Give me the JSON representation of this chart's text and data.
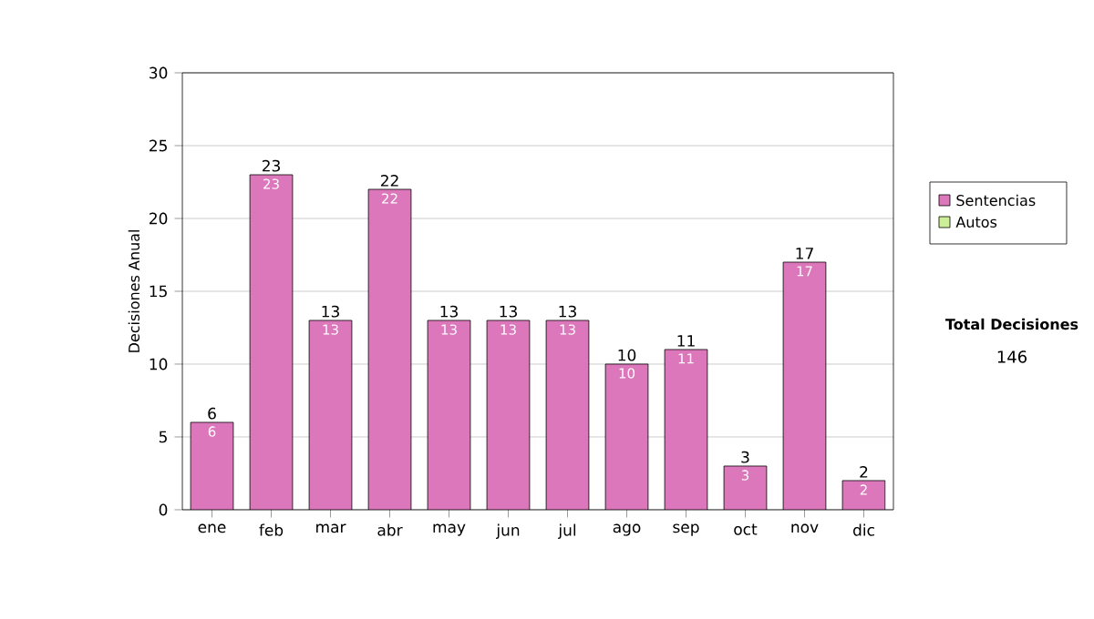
{
  "chart_data": {
    "type": "bar",
    "ylabel": "Decisiones Anual",
    "categories": [
      "ene",
      "feb",
      "mar",
      "abr",
      "may",
      "jun",
      "jul",
      "ago",
      "sep",
      "oct",
      "nov",
      "dic"
    ],
    "series": [
      {
        "name": "Sentencias",
        "color": "#dd77bb",
        "values": [
          6,
          23,
          13,
          22,
          13,
          13,
          13,
          10,
          11,
          3,
          17,
          2
        ],
        "value_labels": [
          "6",
          "23",
          "13",
          "22",
          "13",
          "13",
          "13",
          "10",
          "11",
          "3",
          "17",
          "2"
        ]
      },
      {
        "name": "Autos",
        "color": "#ccee99",
        "values": [
          null,
          null,
          null,
          null,
          null,
          null,
          null,
          null,
          null,
          null,
          null,
          null
        ]
      }
    ],
    "totals": [
      "6",
      "23",
      "13",
      "22",
      "13",
      "13",
      "13",
      "10",
      "11",
      "3",
      "17",
      "2"
    ],
    "ylim": [
      0,
      30
    ],
    "yticks": [
      0,
      5,
      10,
      15,
      20,
      25,
      30
    ],
    "grid": "y",
    "legend": "right",
    "annotations": [
      "Total Decisiones",
      "146"
    ]
  }
}
